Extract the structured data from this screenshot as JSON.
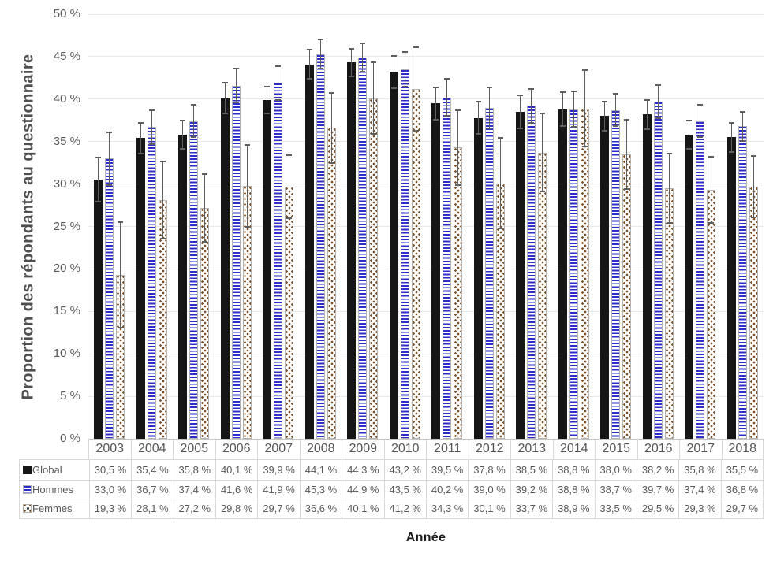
{
  "chart_data": {
    "type": "bar",
    "title": "",
    "xlabel": "Année",
    "ylabel": "Proportion des répondants au questionnaire",
    "ylim": [
      0,
      50
    ],
    "ytick_step": 5,
    "ytick_labels": [
      "0 %",
      "5 %",
      "10 %",
      "15 %",
      "20 %",
      "25 %",
      "30 %",
      "35 %",
      "40 %",
      "45 %",
      "50 %"
    ],
    "grid": true,
    "error_bars": true,
    "legend_position": "table-left",
    "categories": [
      "2003",
      "2004",
      "2005",
      "2006",
      "2007",
      "2008",
      "2009",
      "2010",
      "2011",
      "2012",
      "2013",
      "2014",
      "2015",
      "2016",
      "2017",
      "2018"
    ],
    "series": [
      {
        "name": "Global",
        "style": "solid-black",
        "color": "#161616",
        "values": [
          30.5,
          35.4,
          35.8,
          40.1,
          39.9,
          44.1,
          44.3,
          43.2,
          39.5,
          37.8,
          38.5,
          38.8,
          38.0,
          38.2,
          35.8,
          35.5
        ],
        "error": [
          2.7,
          1.9,
          1.8,
          1.9,
          1.7,
          1.8,
          1.7,
          2.0,
          2.0,
          2.0,
          2.0,
          2.1,
          1.8,
          1.8,
          1.8,
          1.8
        ],
        "table_cells": [
          "30,5 %",
          "35,4 %",
          "35,8 %",
          "40,1 %",
          "39,9 %",
          "44,1 %",
          "44,3 %",
          "43,2 %",
          "39,5 %",
          "37,8 %",
          "38,5 %",
          "38,8 %",
          "38,0 %",
          "38,2 %",
          "35,8 %",
          "35,5 %"
        ]
      },
      {
        "name": "Hommes",
        "style": "blue-horizontal-stripes",
        "color": "#2d2dc9",
        "values": [
          33.0,
          36.7,
          37.4,
          41.6,
          41.9,
          45.3,
          44.9,
          43.5,
          40.2,
          39.0,
          39.2,
          38.8,
          38.7,
          39.7,
          37.4,
          36.8
        ],
        "error": [
          3.2,
          2.1,
          2.0,
          2.1,
          2.1,
          1.8,
          1.8,
          2.1,
          2.3,
          2.5,
          2.1,
          2.2,
          2.0,
          2.0,
          2.0,
          1.8
        ],
        "table_cells": [
          "33,0 %",
          "36,7 %",
          "37,4 %",
          "41,6 %",
          "41,9 %",
          "45,3 %",
          "44,9 %",
          "43,5 %",
          "40,2 %",
          "39,0 %",
          "39,2 %",
          "38,8 %",
          "38,7 %",
          "39,7 %",
          "37,4 %",
          "36,8 %"
        ]
      },
      {
        "name": "Femmes",
        "style": "brown-dots",
        "color": "#7d4e24",
        "values": [
          19.3,
          28.1,
          27.2,
          29.8,
          29.7,
          36.6,
          40.1,
          41.2,
          34.3,
          30.1,
          33.7,
          38.9,
          33.5,
          29.5,
          29.3,
          29.7
        ],
        "error": [
          6.3,
          4.6,
          4.1,
          4.9,
          3.8,
          4.2,
          4.3,
          5.0,
          4.5,
          5.4,
          4.7,
          4.6,
          4.2,
          4.2,
          4.0,
          3.7
        ],
        "table_cells": [
          "19,3 %",
          "28,1 %",
          "27,2 %",
          "29,8 %",
          "29,7 %",
          "36,6 %",
          "40,1 %",
          "41,2 %",
          "34,3 %",
          "30,1 %",
          "33,7 %",
          "38,9 %",
          "33,5 %",
          "29,5 %",
          "29,3 %",
          "29,7 %"
        ]
      }
    ],
    "colors": {
      "bar_black": "#161616",
      "stripe_blue": "#2d2dc9",
      "dot_brown": "#7d4e24",
      "grid": "#e9e9e9",
      "axis_line": "#c6c6c6",
      "table_border": "#d9d9d9",
      "text_gray": "#595959",
      "error_bar": "#5e5e5e"
    }
  }
}
